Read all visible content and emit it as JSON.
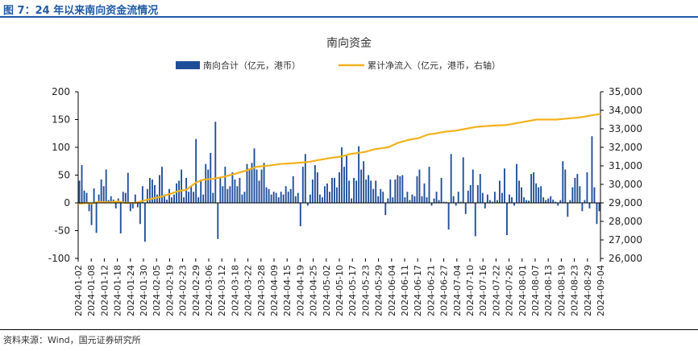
{
  "figure_label": "图 7：24 年以来南向资金流情况",
  "source": "资料来源：Wind，国元证券研究所",
  "colors": {
    "bar": "#1f4e99",
    "line": "#f2b21c",
    "accent": "#1f5aa6",
    "axis": "#000000"
  },
  "chart_data": {
    "type": "bar+line",
    "title": "南向资金",
    "legend": [
      "南向合计（亿元，港币）",
      "累计净流入（亿元，港币，右轴）"
    ],
    "legend_position": "top",
    "y_left": {
      "min": -100,
      "max": 200,
      "ticks": [
        -100,
        -50,
        0,
        50,
        100,
        150,
        200
      ],
      "labels": [
        "-100",
        "-50",
        "0",
        "50",
        "100",
        "150",
        "200"
      ]
    },
    "y_right": {
      "min": 26000,
      "max": 35000,
      "ticks": [
        26000,
        27000,
        28000,
        29000,
        30000,
        31000,
        32000,
        33000,
        34000,
        35000
      ],
      "labels": [
        "26,000",
        "27,000",
        "28,000",
        "29,000",
        "30,000",
        "31,000",
        "32,000",
        "33,000",
        "34,000",
        "35,000"
      ]
    },
    "x_tick_labels": [
      "2024-01-02",
      "2024-01-08",
      "2024-01-12",
      "2024-01-18",
      "2024-01-24",
      "2024-01-30",
      "2024-02-05",
      "2024-02-19",
      "2024-02-23",
      "2024-02-29",
      "2024-03-06",
      "2024-03-12",
      "2024-03-18",
      "2024-03-22",
      "2024-03-28",
      "2024-04-09",
      "2024-04-15",
      "2024-04-19",
      "2024-04-25",
      "2024-05-02",
      "2024-05-10",
      "2024-05-17",
      "2024-05-23",
      "2024-05-29",
      "2024-06-04",
      "2024-06-11",
      "2024-06-17",
      "2024-06-21",
      "2024-06-27",
      "2024-07-04",
      "2024-07-10",
      "2024-07-16",
      "2024-07-22",
      "2024-07-26",
      "2024-08-01",
      "2024-08-07",
      "2024-08-13",
      "2024-08-19",
      "2024-08-23",
      "2024-08-29",
      "2024-09-04"
    ],
    "series": [
      {
        "name": "南向合计（亿元，港币）",
        "type": "bar",
        "values": [
          40,
          68,
          22,
          18,
          -15,
          -40,
          26,
          -54,
          15,
          42,
          30,
          60,
          5,
          12,
          6,
          -10,
          8,
          -55,
          20,
          18,
          54,
          -15,
          -10,
          15,
          -8,
          -38,
          30,
          -70,
          25,
          45,
          42,
          32,
          15,
          50,
          65,
          15,
          6,
          25,
          10,
          15,
          35,
          40,
          60,
          10,
          45,
          20,
          30,
          20,
          115,
          10,
          42,
          15,
          70,
          60,
          90,
          18,
          146,
          -65,
          45,
          30,
          65,
          25,
          30,
          55,
          42,
          30,
          45,
          15,
          20,
          70,
          62,
          72,
          98,
          60,
          40,
          60,
          72,
          28,
          25,
          15,
          20,
          18,
          10,
          20,
          15,
          30,
          20,
          25,
          48,
          12,
          18,
          -42,
          65,
          88,
          -5,
          15,
          42,
          68,
          55,
          15,
          10,
          30,
          35,
          20,
          45,
          45,
          28,
          55,
          100,
          65,
          85,
          40,
          8,
          45,
          40,
          102,
          60,
          75,
          42,
          50,
          40,
          25,
          40,
          12,
          25,
          20,
          -22,
          8,
          42,
          10,
          42,
          50,
          48,
          50,
          10,
          20,
          5,
          15,
          12,
          48,
          60,
          12,
          35,
          10,
          65,
          -5,
          8,
          20,
          5,
          45,
          2,
          2,
          -48,
          88,
          12,
          -5,
          20,
          2,
          82,
          -20,
          22,
          32,
          60,
          -60,
          32,
          52,
          18,
          -10,
          15,
          5,
          2,
          20,
          5,
          40,
          18,
          62,
          -58,
          15,
          10,
          -5,
          70,
          40,
          28,
          10,
          5,
          4,
          52,
          55,
          35,
          28,
          30,
          10,
          5,
          8,
          12,
          6,
          2,
          -5,
          5,
          75,
          60,
          -25,
          5,
          28,
          45,
          52,
          30,
          -15,
          5,
          55,
          -10,
          120,
          28,
          -38,
          -15
        ],
        "x_start_label": "2024-01-02",
        "x_end_label": "2024-09-04"
      },
      {
        "name": "累计净流入（亿元，港币，右轴）",
        "type": "line",
        "points": [
          [
            0,
            28950
          ],
          [
            0.05,
            29000
          ],
          [
            0.08,
            28960
          ],
          [
            0.12,
            29050
          ],
          [
            0.18,
            29030
          ],
          [
            0.24,
            29080
          ],
          [
            0.28,
            29000
          ],
          [
            0.34,
            29000
          ],
          [
            0.4,
            29150
          ],
          [
            0.5,
            29350
          ],
          [
            0.6,
            29650
          ],
          [
            0.64,
            29700
          ],
          [
            0.7,
            30100
          ],
          [
            0.74,
            30250
          ],
          [
            0.8,
            30300
          ],
          [
            0.86,
            30400
          ],
          [
            0.92,
            30550
          ],
          [
            0.98,
            30700
          ],
          [
            1.0,
            30750
          ],
          [
            1.06,
            30950
          ],
          [
            1.12,
            31000
          ],
          [
            1.2,
            31100
          ],
          [
            1.28,
            31150
          ],
          [
            1.36,
            31200
          ],
          [
            1.42,
            31300
          ],
          [
            1.48,
            31400
          ],
          [
            1.56,
            31500
          ],
          [
            1.62,
            31650
          ],
          [
            1.7,
            31750
          ],
          [
            1.76,
            31900
          ],
          [
            1.84,
            32000
          ],
          [
            1.9,
            32250
          ],
          [
            1.96,
            32400
          ],
          [
            2.02,
            32500
          ],
          [
            2.08,
            32700
          ],
          [
            2.12,
            32750
          ],
          [
            2.18,
            32850
          ],
          [
            2.24,
            32900
          ],
          [
            2.3,
            33000
          ],
          [
            2.36,
            33100
          ],
          [
            2.42,
            33150
          ],
          [
            2.48,
            33180
          ],
          [
            2.54,
            33200
          ],
          [
            2.6,
            33300
          ],
          [
            2.66,
            33400
          ],
          [
            2.72,
            33500
          ],
          [
            2.78,
            33500
          ],
          [
            2.84,
            33500
          ],
          [
            2.9,
            33550
          ],
          [
            2.96,
            33600
          ],
          [
            3.0,
            33650
          ],
          [
            3.06,
            33750
          ],
          [
            3.1,
            33800
          ]
        ],
        "x_note": "points given as [fraction of full date span x 3.1 scale index, cumulative value]"
      }
    ]
  }
}
